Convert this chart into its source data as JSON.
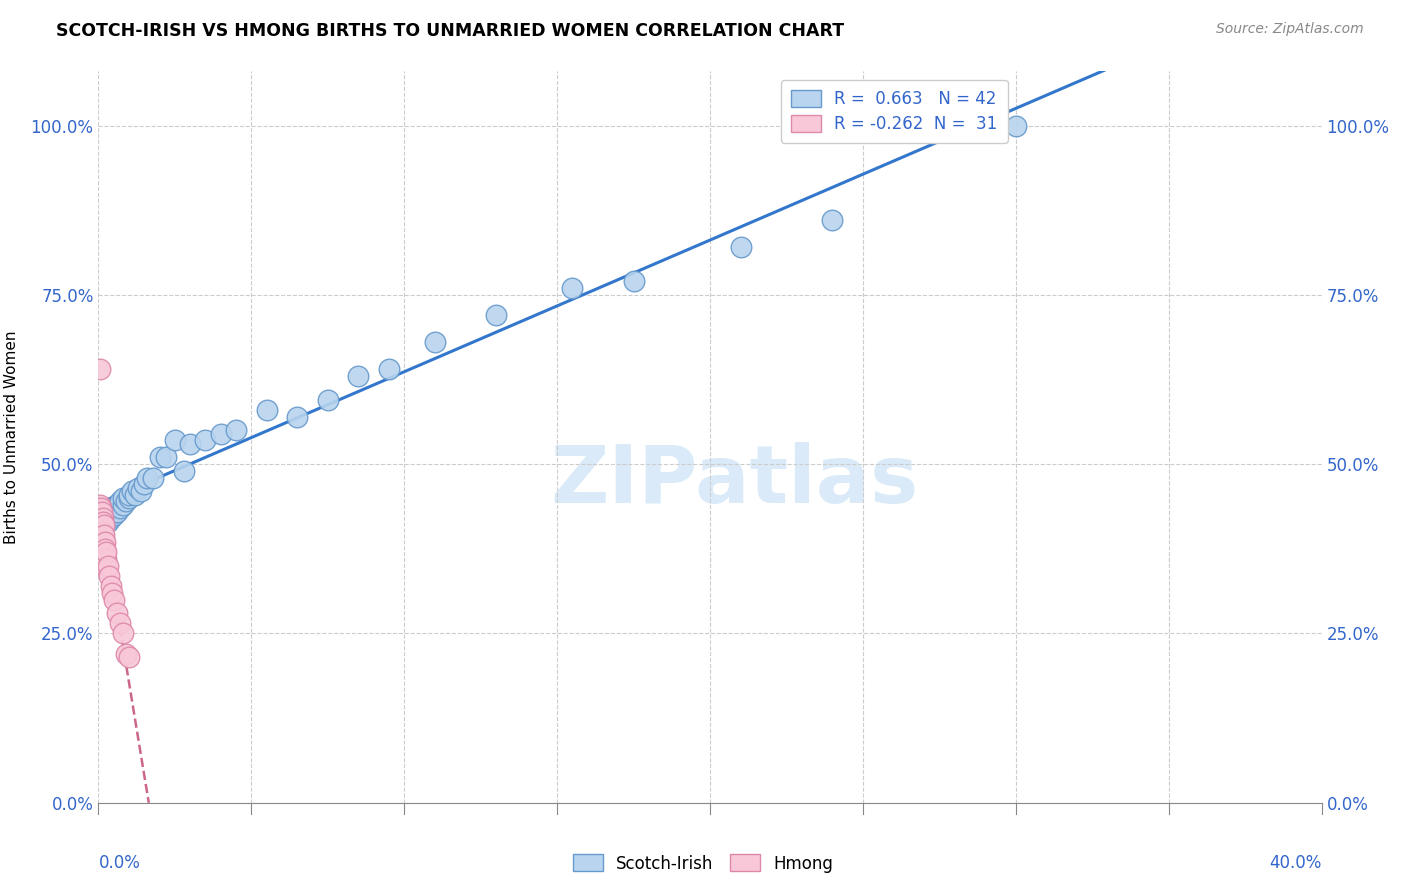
{
  "title": "SCOTCH-IRISH VS HMONG BIRTHS TO UNMARRIED WOMEN CORRELATION CHART",
  "source": "Source: ZipAtlas.com",
  "ylabel": "Births to Unmarried Women",
  "ytick_vals": [
    0.0,
    0.25,
    0.5,
    0.75,
    1.0
  ],
  "ytick_labels": [
    "0.0%",
    "25.0%",
    "50.0%",
    "75.0%",
    "100.0%"
  ],
  "xmin": 0.0,
  "xmax": 0.4,
  "ymin": 0.0,
  "ymax": 1.08,
  "scotch_irish_R": 0.663,
  "scotch_irish_N": 42,
  "hmong_R": -0.262,
  "hmong_N": 31,
  "scotch_color": "#b8d4ee",
  "scotch_edge_color": "#6699cc",
  "hmong_color": "#f8c8d8",
  "hmong_edge_color": "#dd88aa",
  "trend_blue": "#3377cc",
  "trend_pink": "#cc6688",
  "watermark_color": "#daeaf8",
  "scotch_x": [
    0.003,
    0.004,
    0.005,
    0.005,
    0.006,
    0.006,
    0.007,
    0.007,
    0.008,
    0.008,
    0.009,
    0.01,
    0.01,
    0.011,
    0.012,
    0.013,
    0.014,
    0.015,
    0.016,
    0.018,
    0.02,
    0.022,
    0.025,
    0.028,
    0.03,
    0.035,
    0.04,
    0.045,
    0.055,
    0.065,
    0.075,
    0.085,
    0.095,
    0.11,
    0.13,
    0.155,
    0.175,
    0.21,
    0.24,
    0.265,
    0.29,
    0.3
  ],
  "scotch_y": [
    0.415,
    0.42,
    0.425,
    0.43,
    0.43,
    0.44,
    0.435,
    0.445,
    0.44,
    0.45,
    0.445,
    0.45,
    0.455,
    0.46,
    0.455,
    0.465,
    0.46,
    0.47,
    0.48,
    0.48,
    0.51,
    0.51,
    0.535,
    0.49,
    0.53,
    0.535,
    0.545,
    0.55,
    0.58,
    0.57,
    0.595,
    0.63,
    0.64,
    0.68,
    0.72,
    0.76,
    0.77,
    0.82,
    0.86,
    1.0,
    1.0,
    1.0
  ],
  "hmong_x": [
    0.0005,
    0.0005,
    0.0005,
    0.0008,
    0.0008,
    0.001,
    0.001,
    0.0012,
    0.0012,
    0.0014,
    0.0015,
    0.0015,
    0.0015,
    0.0017,
    0.0018,
    0.002,
    0.002,
    0.0022,
    0.0025,
    0.0025,
    0.0028,
    0.003,
    0.0035,
    0.004,
    0.0045,
    0.005,
    0.006,
    0.007,
    0.008,
    0.009,
    0.01
  ],
  "hmong_y": [
    0.64,
    0.44,
    0.43,
    0.425,
    0.415,
    0.435,
    0.42,
    0.43,
    0.415,
    0.42,
    0.415,
    0.4,
    0.39,
    0.41,
    0.395,
    0.385,
    0.37,
    0.375,
    0.36,
    0.37,
    0.345,
    0.35,
    0.335,
    0.32,
    0.31,
    0.3,
    0.28,
    0.265,
    0.25,
    0.22,
    0.215
  ]
}
